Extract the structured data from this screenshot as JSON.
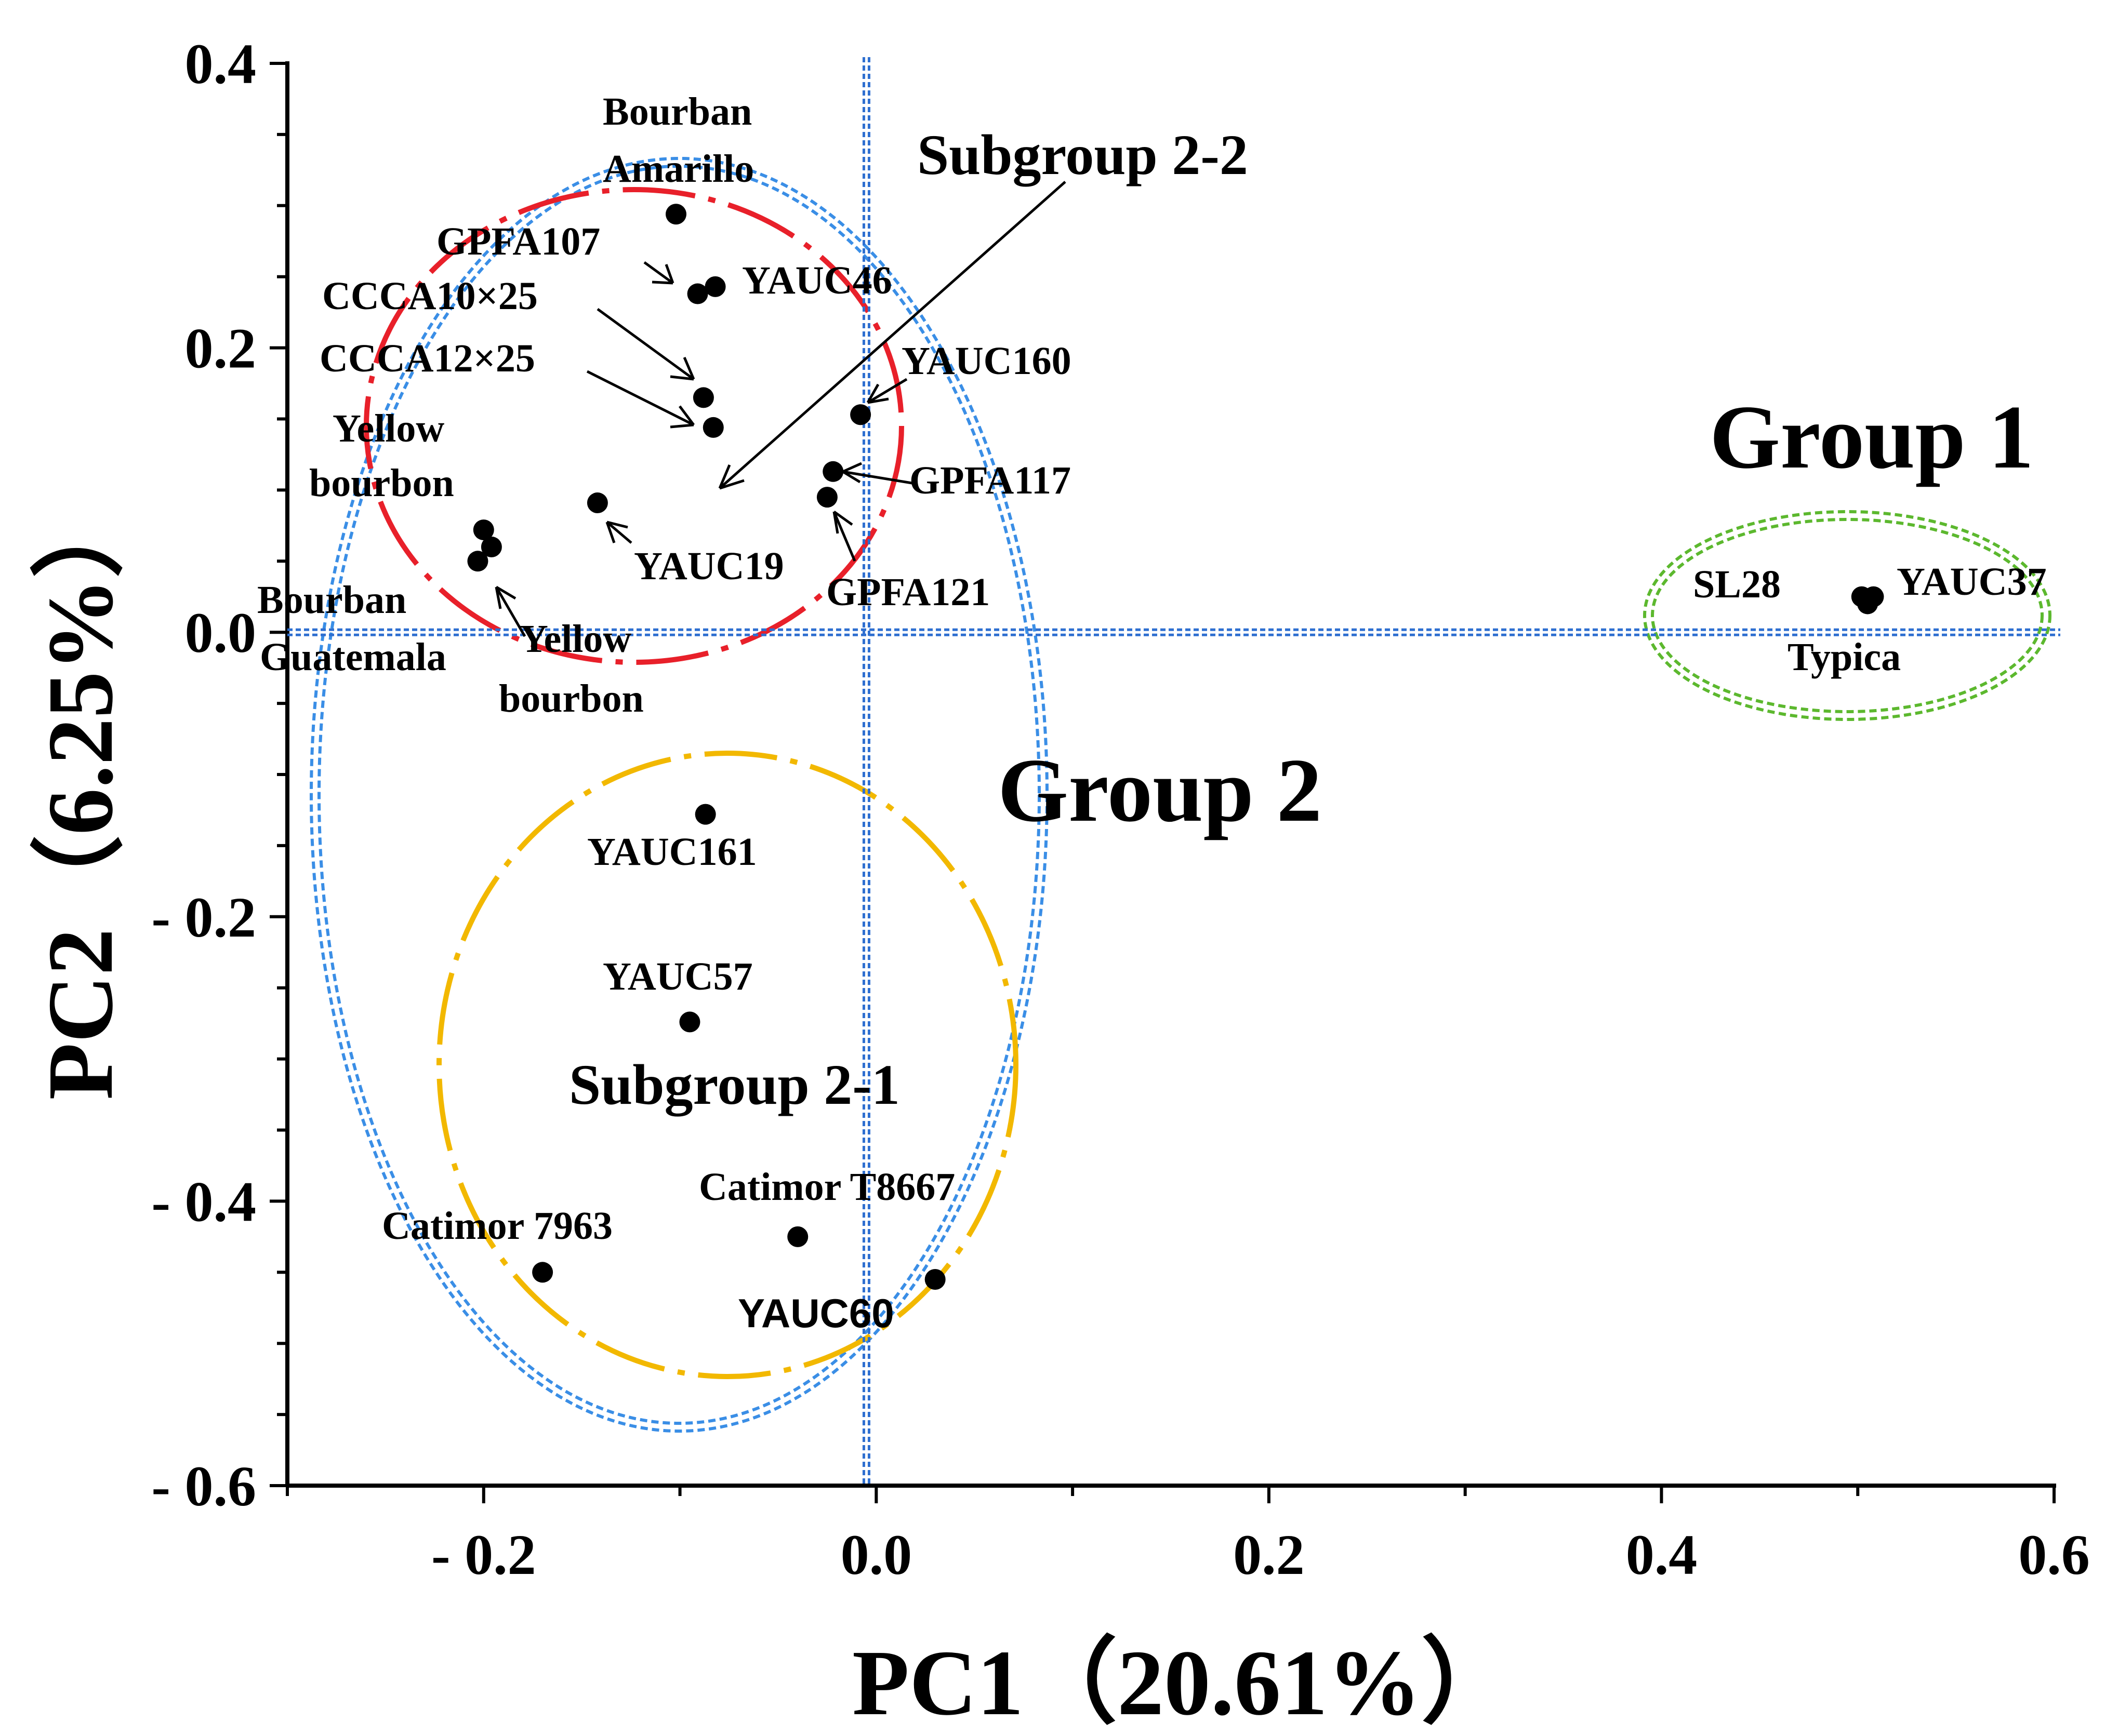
{
  "chart_data": {
    "type": "scatter",
    "title": "",
    "xlabel": "PC1（20.61%）",
    "ylabel": "PC2（6.25%）",
    "xlim": [
      -0.3,
      0.6
    ],
    "ylim": [
      -0.6,
      0.4
    ],
    "x_ticks": [
      -0.2,
      0.0,
      0.2,
      0.4,
      0.6
    ],
    "x_tick_labels": [
      "- 0.2",
      "0.0",
      "0.2",
      "0.4",
      "0.6"
    ],
    "y_ticks": [
      0.4,
      0.2,
      0.0,
      -0.2,
      -0.4,
      -0.6
    ],
    "y_tick_labels": [
      "0.4",
      "0.2",
      "0.0",
      "- 0.2",
      "- 0.4",
      "- 0.6"
    ],
    "reference_lines": {
      "x": -0.005,
      "y": 0.0
    },
    "points": [
      {
        "name": "Bourban Amarillo",
        "x": -0.102,
        "y": 0.294
      },
      {
        "name": "GPFA107",
        "x": -0.091,
        "y": 0.238
      },
      {
        "name": "YAUC46",
        "x": -0.082,
        "y": 0.243
      },
      {
        "name": "CCCA10×25",
        "x": -0.088,
        "y": 0.165
      },
      {
        "name": "CCCA12×25",
        "x": -0.083,
        "y": 0.144
      },
      {
        "name": "YAUC160",
        "x": -0.008,
        "y": 0.153
      },
      {
        "name": "GPFA117",
        "x": -0.022,
        "y": 0.113
      },
      {
        "name": "GPFA121",
        "x": -0.025,
        "y": 0.095
      },
      {
        "name": "YAUC19",
        "x": -0.142,
        "y": 0.091
      },
      {
        "name": "Yellow bourbon (upper)",
        "x": -0.2,
        "y": 0.072
      },
      {
        "name": "Bourban Guatemala",
        "x": -0.203,
        "y": 0.05
      },
      {
        "name": "Yellow bourbon (lower)",
        "x": -0.196,
        "y": 0.06
      },
      {
        "name": "SL28",
        "x": 0.502,
        "y": 0.025
      },
      {
        "name": "YAUC37",
        "x": 0.508,
        "y": 0.025
      },
      {
        "name": "Typica",
        "x": 0.505,
        "y": 0.02
      },
      {
        "name": "YAUC161",
        "x": -0.087,
        "y": -0.128
      },
      {
        "name": "YAUC57",
        "x": -0.095,
        "y": -0.274
      },
      {
        "name": "Catimor T8667",
        "x": -0.04,
        "y": -0.425
      },
      {
        "name": "Catimor 7963",
        "x": -0.17,
        "y": -0.45
      },
      {
        "name": "YAUC60",
        "x": 0.03,
        "y": -0.455
      }
    ],
    "annotations": [
      "Bourban",
      "Amarillo",
      "GPFA107",
      "YAUC46",
      "CCCA10×25",
      "CCCA12×25",
      "Yellow",
      "bourbon",
      "YAUC160",
      "GPFA117",
      "YAUC19",
      "GPFA121",
      "Bourban",
      "Guatemala",
      "Yellow",
      "bourbon",
      "SL28",
      "YAUC37",
      "Typica",
      "YAUC161",
      "YAUC57",
      "Catimor T8667",
      "Catimor 7963",
      "YAUC60"
    ],
    "groups": [
      {
        "name": "Group 1",
        "color": "#5cb82e",
        "members": [
          "SL28",
          "YAUC37",
          "Typica"
        ]
      },
      {
        "name": "Group 2",
        "color": "#3a8ee6",
        "members": [
          "Subgroup 2-1",
          "Subgroup 2-2"
        ]
      },
      {
        "name": "Subgroup 2-2",
        "color": "#e8202a"
      },
      {
        "name": "Subgroup 2-1",
        "color": "#f2b800"
      }
    ]
  }
}
